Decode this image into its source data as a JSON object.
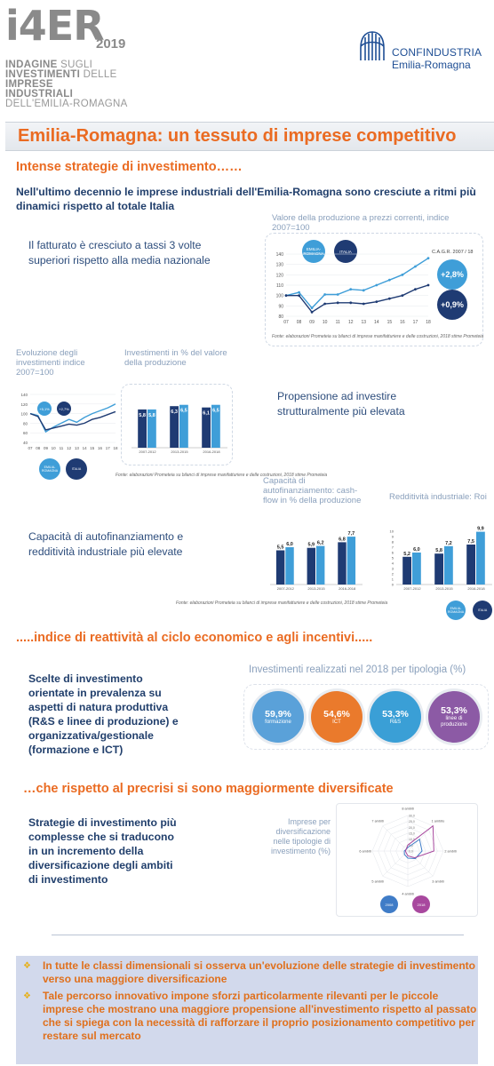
{
  "header": {
    "logo": "i4ER",
    "year": "2019",
    "subtitle": [
      {
        "bold": "INDAGINE",
        "light": " SUGLI"
      },
      {
        "bold": "INVESTIMENTI",
        "light": " DELLE"
      },
      {
        "bold": "IMPRESE",
        "light": ""
      },
      {
        "bold": "INDUSTRIALI",
        "light": ""
      },
      {
        "bold": "",
        "light": "DELL'EMILIA-ROMAGNA"
      }
    ],
    "org_name": "CONFINDUSTRIA",
    "org_region": "Emilia-Romagna"
  },
  "title": "Emilia-Romagna: un tessuto di imprese competitivo",
  "section1": {
    "heading": "Intense strategie di investimento……",
    "intro": "Nell'ultimo decennio le imprese industriali dell'Emilia-Romagna sono cresciute a ritmi più dinamici rispetto al totale Italia",
    "fatturato_text": "Il fatturato è cresciuto a tassi 3 volte superiori rispetto alla media nazionale",
    "propensione_text": "Propensione ad investire strutturalmente più elevata",
    "capacita_text": "Capacità di autofinanziamento e redditività industriale più elevate"
  },
  "colors": {
    "orange": "#ea6b22",
    "navy": "#1f3b73",
    "light_blue": "#3f9ed8",
    "purple": "#8b5aa8"
  },
  "chart_prod": {
    "title": "Valore della produzione a prezzi correnti, indice 2007=100",
    "legend": [
      "EMILIA-ROMAGNA",
      "ITALIA"
    ],
    "cagr_label": "C.A.G.R. 2007 / 18",
    "cagr_er": "+2,8%",
    "cagr_it": "+0,9%",
    "y_ticks": [
      "140",
      "130",
      "120",
      "110",
      "100",
      "90",
      "80"
    ],
    "x_ticks": [
      "07",
      "08",
      "09",
      "10",
      "11",
      "12",
      "13",
      "14",
      "15",
      "16",
      "17",
      "18"
    ],
    "er": [
      100,
      103,
      88,
      101,
      101,
      106,
      105,
      110,
      115,
      120,
      128,
      136
    ],
    "it": [
      100,
      100,
      84,
      92,
      93,
      93,
      92,
      94,
      97,
      100,
      106,
      110
    ],
    "source": "Fonte: elaborazioni Prometeia su bilanci di imprese manifatturiere e delle costruzioni, 2018 stime Prometeia"
  },
  "chart_inv": {
    "title": "Evoluzione degli investimenti indice 2007=100",
    "y_ticks": [
      "140",
      "120",
      "100",
      "80",
      "60",
      "40"
    ],
    "x_ticks": [
      "07",
      "08",
      "09",
      "10",
      "11",
      "12",
      "13",
      "14",
      "15",
      "16",
      "17",
      "18"
    ],
    "er": [
      100,
      96,
      62,
      72,
      80,
      88,
      82,
      92,
      100,
      106,
      112,
      120
    ],
    "it": [
      100,
      94,
      66,
      70,
      74,
      78,
      76,
      80,
      88,
      92,
      98,
      104
    ],
    "badge_er": "+5,1%",
    "badge_it": "+2,7%",
    "legend": [
      "EMILIA-ROMAGNA",
      "ITALIA"
    ]
  },
  "chart_pct": {
    "title": "Investimenti in % del valore della produzione",
    "type": "bar",
    "categories": [
      "2007-2012",
      "2013-2015",
      "2016-2018"
    ],
    "series": [
      {
        "name": "ITALIA",
        "values": [
          "5,8",
          "6,3",
          "6,1"
        ]
      },
      {
        "name": "EMILIA-ROMAGNA",
        "values": [
          "5,8",
          "6,5",
          "6,5"
        ]
      }
    ],
    "source": "Fonte: elaborazioni Prometeia su bilanci di imprese manifatturiere e delle costruzioni, 2018 stime Prometeia"
  },
  "chart_auto": {
    "title": "Capacità di autofinanziamento: cash-flow in % della produzione",
    "categories": [
      "2007-2012",
      "2013-2015",
      "2016-2018"
    ],
    "series": [
      {
        "name": "ITALIA",
        "values": [
          "5,5",
          "5,9",
          "6,8"
        ]
      },
      {
        "name": "EMILIA-ROMAGNA",
        "values": [
          "6,0",
          "6,2",
          "7,7"
        ]
      }
    ]
  },
  "chart_roi": {
    "title": "Redditività industriale: Roi",
    "y_ticks": [
      "10",
      "9",
      "8",
      "7",
      "6",
      "5",
      "4",
      "3",
      "2",
      "1",
      "0"
    ],
    "categories": [
      "2007-2012",
      "2013-2015",
      "2016-2018"
    ],
    "series": [
      {
        "name": "ITALIA",
        "values": [
          "5,2",
          "5,8",
          "7,5"
        ]
      },
      {
        "name": "EMILIA-ROMAGNA",
        "values": [
          "6,0",
          "7,2",
          "9,9"
        ]
      }
    ],
    "legend": [
      "EMILIA-ROMAGNA",
      "ITALIA"
    ],
    "source": "Fonte: elaborazioni Prometeia su bilanci di imprese manifatturiere e delle costruzioni, 2018 stime Prometeia"
  },
  "section2": {
    "heading": ".....indice di reattività al ciclo economico e agli incentivi.....",
    "text": "Scelte di investimento orientate in prevalenza su aspetti di natura produttiva (R&S e linee di produzione) e organizzativa/gestionale (formazione e ICT)",
    "chart_title": "Investimenti realizzati nel 2018 per tipologia (%)",
    "circles": [
      {
        "value": "59,9%",
        "label": "formazione",
        "color": "#5aa1d9"
      },
      {
        "value": "54,6%",
        "label": "ICT",
        "color": "#ea7a2c"
      },
      {
        "value": "53,3%",
        "label": "R&S",
        "color": "#3a9fd6"
      },
      {
        "value": "53,3%",
        "label": "linee di produzione",
        "color": "#8c5aa5"
      }
    ]
  },
  "section3": {
    "heading": "…che rispetto al precrisi si sono maggiormente diversificate",
    "text": "Strategie di investimento più complesse che si traducono in un incremento della diversificazione degli ambiti di investimento",
    "chart_title": "Imprese per diversificazione nelle tipologie di investimento (%)",
    "radar_axes": [
      "8 ambiti",
      "1 ambito",
      "2 ambiti",
      "3 ambiti",
      "4 ambiti",
      "5 ambiti",
      "6 ambiti",
      "7 ambiti"
    ],
    "radar_ticks": [
      "30,0",
      "25,0",
      "20,0",
      "15,0",
      "10,0",
      "5,0",
      "0,0"
    ],
    "radar_series": [
      {
        "name": "2008",
        "values": [
          3,
          14,
          12,
          9,
          6,
          4,
          3,
          2
        ]
      },
      {
        "name": "2018",
        "values": [
          5,
          30,
          22,
          8,
          4,
          2,
          2,
          2
        ]
      }
    ]
  },
  "bullets": [
    "In tutte le classi dimensionali si osserva un'evoluzione delle strategie di investimento verso una maggiore diversificazione",
    "Tale percorso innovativo impone sforzi particolarmente rilevanti per le piccole imprese che mostrano una maggiore propensione all'investimento rispetto al passato che si spiega con la necessità di rafforzare il proprio posizionamento competitivo per restare sul mercato"
  ]
}
